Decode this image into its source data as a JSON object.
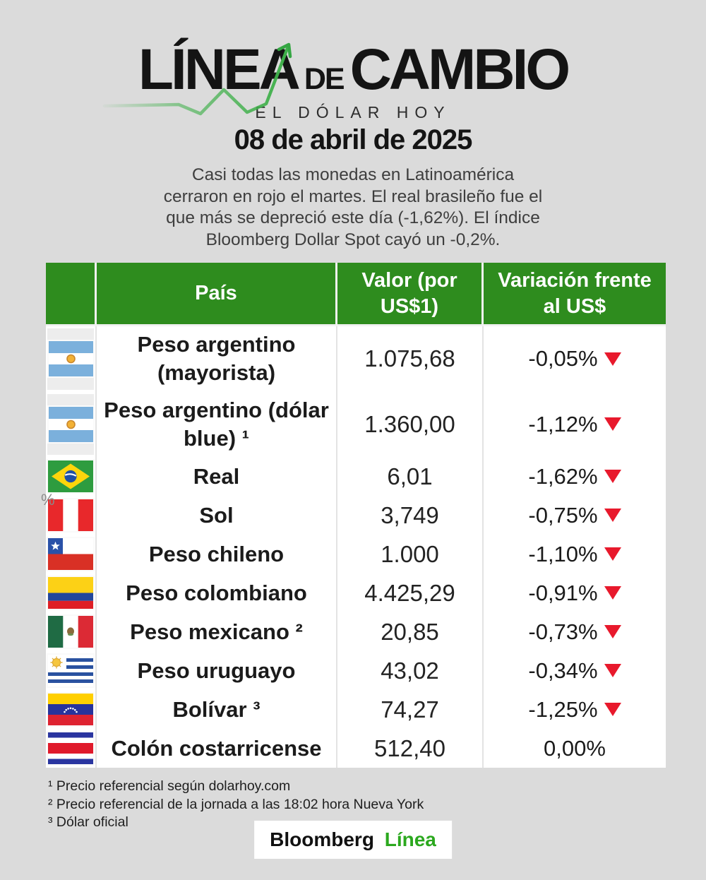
{
  "header": {
    "title_word1": "LÍNEA",
    "title_connector": "DE",
    "title_word2": "CAMBIO",
    "subtitle": "EL DÓLAR HOY",
    "date": "08 de abril de 2025",
    "description_lines": [
      "Casi todas las monedas en Latinoamérica",
      "cerraron en rojo el martes. El real brasileño fue el",
      "que más se depreció este día (-1,62%). El índice",
      "Bloomberg Dollar Spot cayó un -0,2%."
    ]
  },
  "table": {
    "column_headers": {
      "flag": "",
      "country": "País",
      "value": "Valor (por US$1)",
      "variation": "Variación frente al US$"
    },
    "rows": [
      {
        "flag": "argentina",
        "country": "Peso argentino (mayorista)",
        "value": "1.075,68",
        "variation": "-0,05%",
        "direction": "down"
      },
      {
        "flag": "argentina",
        "country": "Peso argentino (dólar blue) ¹",
        "value": "1.360,00",
        "variation": "-1,12%",
        "direction": "down"
      },
      {
        "flag": "brazil",
        "country": "Real",
        "value": "6,01",
        "variation": "-1,62%",
        "direction": "down"
      },
      {
        "flag": "peru",
        "country": "Sol",
        "value": "3,749",
        "variation": "-0,75%",
        "direction": "down"
      },
      {
        "flag": "chile",
        "country": "Peso chileno",
        "value": "1.000",
        "variation": "-1,10%",
        "direction": "down"
      },
      {
        "flag": "colombia",
        "country": "Peso colombiano",
        "value": "4.425,29",
        "variation": "-0,91%",
        "direction": "down"
      },
      {
        "flag": "mexico",
        "country": "Peso mexicano ²",
        "value": "20,85",
        "variation": "-0,73%",
        "direction": "down"
      },
      {
        "flag": "uruguay",
        "country": "Peso uruguayo",
        "value": "43,02",
        "variation": "-0,34%",
        "direction": "down"
      },
      {
        "flag": "venezuela",
        "country": "Bolívar ³",
        "value": "74,27",
        "variation": "-1,25%",
        "direction": "down"
      },
      {
        "flag": "costa-rica",
        "country": "Colón costarricense",
        "value": "512,40",
        "variation": "0,00%",
        "direction": "flat"
      }
    ]
  },
  "footnotes": [
    "¹ Precio referencial según dolarhoy.com",
    "² Precio referencial de la jornada a las 18:02 hora Nueva York",
    "³ Dólar oficial"
  ],
  "footer": {
    "brand_word1": "Bloomberg",
    "brand_word2": "Línea"
  },
  "artifacts": {
    "stray_percent": "%"
  },
  "colors": {
    "background": "#DBDBDB",
    "table_header_green": "#2E8C1E",
    "trend_line_green": "#3FB04A",
    "brand_green": "#2BA81E",
    "negative_red": "#E8192C"
  },
  "chart_data": {
    "type": "table",
    "title": "LÍNEA DE CAMBIO — EL DÓLAR HOY — 08 de abril de 2025",
    "columns": [
      "País",
      "Valor (por US$1)",
      "Variación frente al US$"
    ],
    "rows": [
      [
        "Peso argentino (mayorista)",
        "1.075,68",
        "-0,05%"
      ],
      [
        "Peso argentino (dólar blue) ¹",
        "1.360,00",
        "-1,12%"
      ],
      [
        "Real",
        "6,01",
        "-1,62%"
      ],
      [
        "Sol",
        "3,749",
        "-0,75%"
      ],
      [
        "Peso chileno",
        "1.000",
        "-1,10%"
      ],
      [
        "Peso colombiano",
        "4.425,29",
        "-0,91%"
      ],
      [
        "Peso mexicano ²",
        "20,85",
        "-0,73%"
      ],
      [
        "Peso uruguayo",
        "43,02",
        "-0,34%"
      ],
      [
        "Bolívar ³",
        "74,27",
        "-1,25%"
      ],
      [
        "Colón costarricense",
        "512,40",
        "0,00%"
      ]
    ]
  }
}
